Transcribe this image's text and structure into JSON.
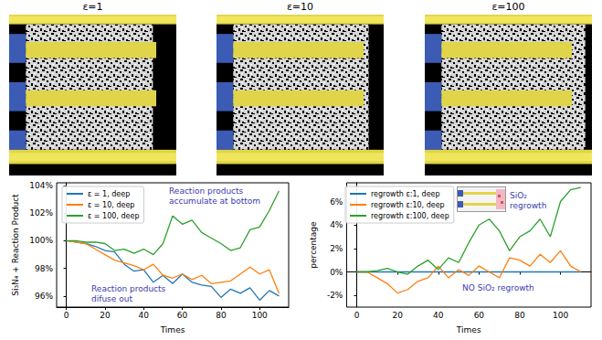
{
  "panels": [
    {
      "label": "ε=1"
    },
    {
      "label": "ε=10"
    },
    {
      "label": "ε=100"
    }
  ],
  "chart_data": [
    {
      "type": "line",
      "y_label": "Si₃N₄ + Reaction Product",
      "x_label": "Times",
      "x": [
        0,
        5,
        10,
        15,
        20,
        25,
        30,
        35,
        40,
        45,
        50,
        55,
        60,
        65,
        70,
        75,
        80,
        85,
        90,
        95,
        100,
        105,
        110
      ],
      "xlim": [
        -5,
        115
      ],
      "xticks": [
        0,
        20,
        40,
        60,
        80,
        100
      ],
      "ylim": [
        95.2,
        104.2
      ],
      "yticks": [
        {
          "value": 96,
          "label": "96%"
        },
        {
          "value": 98,
          "label": "98%"
        },
        {
          "value": 100,
          "label": "100%"
        },
        {
          "value": 102,
          "label": "102%"
        },
        {
          "value": 104,
          "label": "104%"
        }
      ],
      "grid": false,
      "legend": "upper left",
      "series": [
        {
          "name": "ε = 1, deep",
          "color": "#1f77b4",
          "values": [
            100,
            99.9,
            99.8,
            99.6,
            99.3,
            99.2,
            98.3,
            97.8,
            97.9,
            97.0,
            97.5,
            96.9,
            97.6,
            97.0,
            96.8,
            96.7,
            95.9,
            96.5,
            96.2,
            96.6,
            95.7,
            96.4,
            96.0
          ]
        },
        {
          "name": "ε = 10, deep",
          "color": "#ff7f0e",
          "values": [
            100,
            99.9,
            99.8,
            99.4,
            99.0,
            98.6,
            98.4,
            98.2,
            97.9,
            98.3,
            97.5,
            97.3,
            97.6,
            97.2,
            97.5,
            96.9,
            97.0,
            97.1,
            97.6,
            98.1,
            97.6,
            97.9,
            96.2
          ]
        },
        {
          "name": "ε = 100, deep",
          "color": "#2ca02c",
          "values": [
            100,
            100.0,
            99.9,
            99.9,
            99.8,
            99.3,
            99.4,
            99.1,
            99.4,
            99.0,
            99.8,
            101.8,
            101.2,
            101.5,
            100.6,
            100.2,
            99.8,
            99.3,
            99.5,
            100.8,
            101.0,
            102.2,
            103.6
          ]
        }
      ],
      "annotations": [
        "Reaction products\naccumulate at bottom",
        "Reaction products\ndifuse out"
      ]
    },
    {
      "type": "line",
      "y_label": "percentage",
      "x_label": "Times",
      "x": [
        0,
        5,
        10,
        15,
        20,
        25,
        30,
        35,
        40,
        45,
        50,
        55,
        60,
        65,
        70,
        75,
        80,
        85,
        90,
        95,
        100,
        105,
        110
      ],
      "xlim": [
        -5,
        115
      ],
      "xticks": [
        0,
        20,
        40,
        60,
        80,
        100
      ],
      "ylim": [
        -3,
        7.6
      ],
      "yticks": [
        {
          "value": -2,
          "label": "-2%"
        },
        {
          "value": 0,
          "label": "0%"
        },
        {
          "value": 2,
          "label": "2%"
        },
        {
          "value": 4,
          "label": "4%"
        },
        {
          "value": 6,
          "label": "6%"
        }
      ],
      "grid": false,
      "legend": "upper left",
      "series": [
        {
          "name": "regrowth ε:1, deep",
          "color": "#1f77b4",
          "values": [
            0,
            0,
            0,
            0,
            0,
            0,
            0,
            0,
            0,
            0,
            0,
            0,
            0,
            0,
            0,
            0,
            0,
            0,
            0,
            0,
            0,
            0,
            0
          ]
        },
        {
          "name": "regrowth ε:10, deep",
          "color": "#ff7f0e",
          "values": [
            0,
            0,
            -0.5,
            -1.0,
            -1.8,
            -1.5,
            -0.8,
            -0.5,
            0.5,
            -0.5,
            0.2,
            -0.3,
            0.5,
            0.0,
            -0.5,
            1.2,
            1.0,
            0.5,
            1.5,
            0.8,
            1.8,
            0.5,
            0
          ]
        },
        {
          "name": "regrowth ε:100, deep",
          "color": "#2ca02c",
          "values": [
            0,
            0,
            0.1,
            0.3,
            0.0,
            -0.2,
            0.5,
            1.0,
            0.2,
            1.2,
            0.8,
            2.5,
            4.0,
            4.5,
            3.5,
            1.8,
            3.0,
            3.5,
            4.5,
            3.0,
            6.0,
            7.0,
            7.2
          ]
        }
      ],
      "annotations": [
        "SiO₂\nregrowth",
        "NO SiO₂ regrowth"
      ]
    }
  ]
}
